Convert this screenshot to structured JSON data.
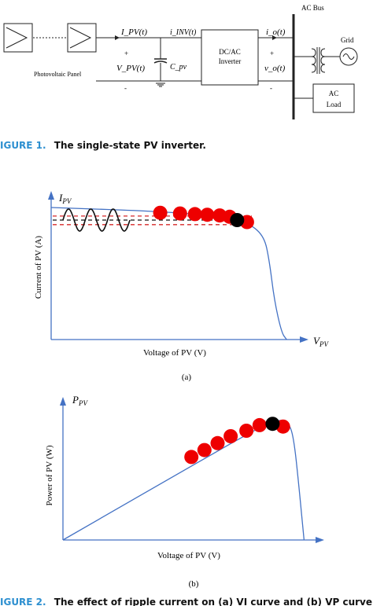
{
  "figure1": {
    "ac_bus": "AC Bus",
    "grid": "Grid",
    "ipv": "I_PV(t)",
    "idinv": "i_INV(t)",
    "io": "i_o(t)",
    "vpv": "V_PV(t)",
    "cpv": "C_pv",
    "vo": "v_o(t)",
    "plus1": "+",
    "plus2": "+",
    "minus1": "-",
    "minus2": "-",
    "panel_label": "Photovoltaic Panel",
    "inverter_line1": "DC/AC",
    "inverter_line2": "Inverter",
    "load_line1": "AC",
    "load_line2": "Load",
    "caption_prefix": "IGURE 1.",
    "caption_text": "The single-state PV inverter."
  },
  "figure2": {
    "caption_prefix": "IGURE 2.",
    "caption_text": "The effect of ripple current on (a) VI curve and (b) VP curve"
  },
  "chart_data": [
    {
      "type": "line",
      "subfigure": "(a)",
      "ylabel": "Current of PV (A)",
      "xlabel": "Voltage of PV (V)",
      "y_axis_symbol": "I_PV",
      "x_axis_symbol": "V_PV",
      "curve_x": [
        0.0,
        0.45,
        0.7,
        0.8,
        0.86,
        0.88,
        0.9,
        0.93,
        0.95
      ],
      "curve_y": [
        1.0,
        0.97,
        0.93,
        0.88,
        0.78,
        0.6,
        0.3,
        0.05,
        0.0
      ],
      "red_markers": [
        [
          0.44,
          0.96
        ],
        [
          0.52,
          0.955
        ],
        [
          0.58,
          0.95
        ],
        [
          0.63,
          0.945
        ],
        [
          0.68,
          0.94
        ],
        [
          0.72,
          0.93
        ],
        [
          0.79,
          0.89
        ]
      ],
      "black_marker": [
        0.75,
        0.905
      ],
      "reference_lines_y": [
        0.935,
        0.905,
        0.87
      ],
      "ripple_cycles": 3
    },
    {
      "type": "line",
      "subfigure": "(b)",
      "ylabel": "Power of PV (W)",
      "xlabel": "Voltage of PV (V)",
      "y_axis_symbol": "P_PV",
      "x_axis_symbol": "",
      "curve_x": [
        0.0,
        0.55,
        0.7,
        0.78,
        0.83,
        0.86,
        0.88,
        0.9,
        0.92
      ],
      "curve_y": [
        0.0,
        0.6,
        0.76,
        0.84,
        0.87,
        0.85,
        0.75,
        0.4,
        0.0
      ],
      "red_markers": [
        [
          0.49,
          0.6
        ],
        [
          0.54,
          0.65
        ],
        [
          0.59,
          0.7
        ],
        [
          0.64,
          0.75
        ],
        [
          0.7,
          0.79
        ],
        [
          0.75,
          0.83
        ],
        [
          0.84,
          0.82
        ]
      ],
      "black_marker": [
        0.8,
        0.84
      ]
    }
  ]
}
